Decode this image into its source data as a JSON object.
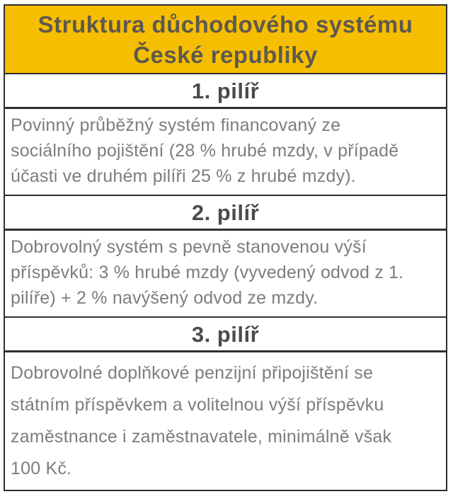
{
  "colors": {
    "header_bg": "#f6be00",
    "border": "#2f2f2f",
    "title_text": "#5e594e",
    "pillar_text": "#4b4b4b",
    "body_text": "#7d7d7d"
  },
  "title": {
    "lines": [
      "Struktura důchodového systému",
      "České republiky"
    ]
  },
  "sections": [
    {
      "heading": "1. pilíř",
      "body_lines": [
        "Povinný průběžný systém financovaný ze",
        "sociálního pojištění (28 % hrubé mzdy, v případě",
        "účasti ve druhém pilíři 25 % z hrubé mzdy)."
      ]
    },
    {
      "heading": "2. pilíř",
      "body_lines": [
        "Dobrovolný systém s pevně stanovenou výší",
        "příspěvků: 3 % hrubé mzdy (vyvedený odvod z 1.",
        "pilíře) + 2 % navýšený odvod ze mzdy."
      ]
    },
    {
      "heading": "3. pilíř",
      "body_lines": [
        "Dobrovolné doplňkové penzijní připojištění se",
        "státním příspěvkem a volitelnou výší příspěvku",
        "zaměstnance i zaměstnavatele, minimálně však",
        "100 Kč."
      ]
    }
  ]
}
